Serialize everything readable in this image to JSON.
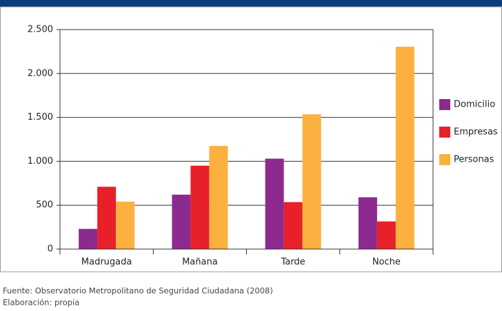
{
  "chart_data": {
    "type": "bar",
    "categories": [
      "Madrugada",
      "Mañana",
      "Tarde",
      "Noche"
    ],
    "series": [
      {
        "name": "Domicilio",
        "color": "#8c2a8f",
        "values": [
          230,
          620,
          1030,
          590
        ]
      },
      {
        "name": "Empresas",
        "color": "#e8202a",
        "values": [
          710,
          950,
          535,
          315
        ]
      },
      {
        "name": "Personas",
        "color": "#fbb040",
        "values": [
          540,
          1175,
          1535,
          2305
        ]
      }
    ],
    "ylim": [
      0,
      2500
    ],
    "yticks": [
      0,
      500,
      {
        "value": 1000,
        "label": "1.000"
      },
      {
        "value": 1500,
        "label": "1.500"
      },
      {
        "value": 2000,
        "label": "2.000"
      },
      {
        "value": 2500,
        "label": "2.500"
      }
    ],
    "grid": true,
    "legend": "right",
    "notes": [
      "Fuente: Observatorio Metropolitano de Seguridad Ciudadana (2008)",
      "Elaboración: propia"
    ]
  }
}
